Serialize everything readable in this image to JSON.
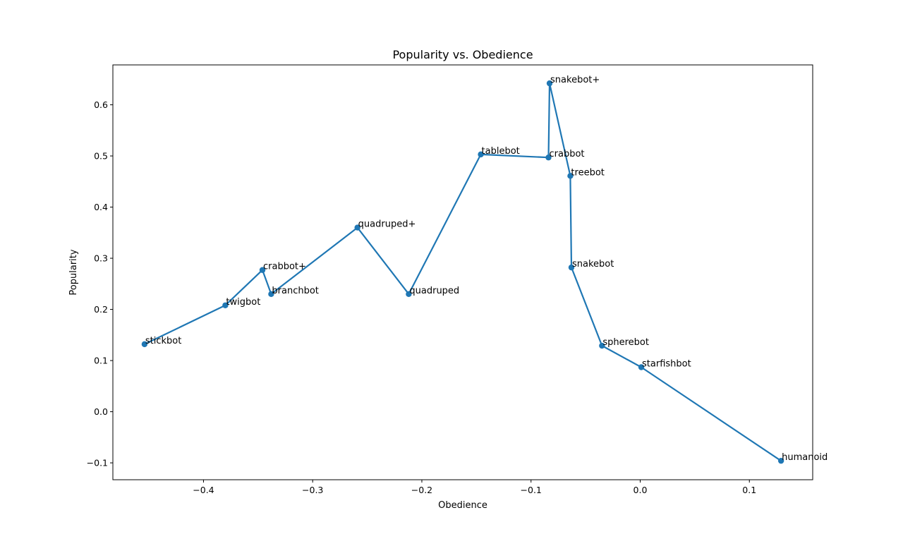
{
  "chart_data": {
    "type": "line",
    "title": "Popularity vs. Obedience",
    "xlabel": "Obedience",
    "ylabel": "Popularity",
    "xlim": [
      -0.483,
      0.158
    ],
    "ylim": [
      -0.133,
      0.678
    ],
    "xticks": [
      -0.4,
      -0.3,
      -0.2,
      -0.1,
      0.0,
      0.1
    ],
    "xtick_labels": [
      "−0.4",
      "−0.3",
      "−0.2",
      "−0.1",
      "0.0",
      "0.1"
    ],
    "yticks": [
      -0.1,
      0.0,
      0.1,
      0.2,
      0.3,
      0.4,
      0.5,
      0.6
    ],
    "ytick_labels": [
      "−0.1",
      "0.0",
      "0.1",
      "0.2",
      "0.3",
      "0.4",
      "0.5",
      "0.6"
    ],
    "grid": false,
    "color": "#1f77b4",
    "series": [
      {
        "points": [
          {
            "label": "stickbot",
            "x": -0.454,
            "y": 0.132
          },
          {
            "label": "twigbot",
            "x": -0.38,
            "y": 0.208
          },
          {
            "label": "crabbot+",
            "x": -0.346,
            "y": 0.277
          },
          {
            "label": "branchbot",
            "x": -0.338,
            "y": 0.23
          },
          {
            "label": "quadruped+",
            "x": -0.259,
            "y": 0.36
          },
          {
            "label": "quadruped",
            "x": -0.212,
            "y": 0.23
          },
          {
            "label": "tablebot",
            "x": -0.146,
            "y": 0.503
          },
          {
            "label": "crabbot",
            "x": -0.084,
            "y": 0.497
          },
          {
            "label": "snakebot+",
            "x": -0.083,
            "y": 0.642
          },
          {
            "label": "treebot",
            "x": -0.064,
            "y": 0.461
          },
          {
            "label": "snakebot",
            "x": -0.063,
            "y": 0.282
          },
          {
            "label": "spherebot",
            "x": -0.035,
            "y": 0.129
          },
          {
            "label": "starfishbot",
            "x": 0.001,
            "y": 0.087
          },
          {
            "label": "humanoid",
            "x": 0.129,
            "y": -0.096
          }
        ]
      }
    ]
  }
}
